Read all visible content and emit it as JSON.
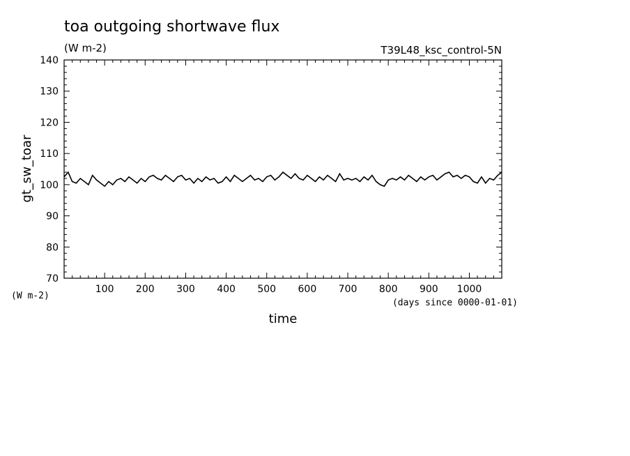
{
  "chart_data": {
    "type": "line",
    "title": "toa outgoing shortwave flux",
    "units": "(W m-2)",
    "experiment": "T39L48_ksc_control-5N",
    "ylabel": "gt_sw_toar",
    "yunits": "(W m-2)",
    "xlabel": "time",
    "xunits": "(days since 0000-01-01)",
    "xlim": [
      0,
      1080
    ],
    "ylim": [
      70,
      140
    ],
    "xticks": [
      100,
      200,
      300,
      400,
      500,
      600,
      700,
      800,
      900,
      1000
    ],
    "yticks": [
      70,
      80,
      90,
      100,
      110,
      120,
      130,
      140
    ],
    "series": [
      {
        "x": [
          0,
          10,
          20,
          30,
          40,
          50,
          60,
          70,
          80,
          90,
          100,
          110,
          120,
          130,
          140,
          150,
          160,
          170,
          180,
          190,
          200,
          210,
          220,
          230,
          240,
          250,
          260,
          270,
          280,
          290,
          300,
          310,
          320,
          330,
          340,
          350,
          360,
          370,
          380,
          390,
          400,
          410,
          420,
          430,
          440,
          450,
          460,
          470,
          480,
          490,
          500,
          510,
          520,
          530,
          540,
          550,
          560,
          570,
          580,
          590,
          600,
          610,
          620,
          630,
          640,
          650,
          660,
          670,
          680,
          690,
          700,
          710,
          720,
          730,
          740,
          750,
          760,
          770,
          780,
          790,
          800,
          810,
          820,
          830,
          840,
          850,
          860,
          870,
          880,
          890,
          900,
          910,
          920,
          930,
          940,
          950,
          960,
          970,
          980,
          990,
          1000,
          1010,
          1020,
          1030,
          1040,
          1050,
          1060,
          1070,
          1080
        ],
        "values": [
          102.5,
          104,
          101,
          100.5,
          102,
          101,
          100,
          103,
          101.5,
          100.5,
          99.5,
          101,
          100,
          101.5,
          102,
          101,
          102.5,
          101.5,
          100.5,
          102,
          101,
          102.5,
          103,
          102,
          101.5,
          103,
          102,
          101,
          102.5,
          103,
          101.5,
          102,
          100.5,
          102,
          101,
          102.5,
          101.5,
          102,
          100.5,
          101,
          102.5,
          101,
          103,
          102,
          101,
          102,
          103,
          101.5,
          102,
          101,
          102.5,
          103,
          101.5,
          102.5,
          104,
          103,
          102,
          103.5,
          102,
          101.5,
          103,
          102,
          101,
          102.5,
          101.5,
          103,
          102,
          101,
          103.5,
          101.5,
          102,
          101.5,
          102,
          101,
          102.5,
          101.5,
          103,
          101,
          100,
          99.5,
          101.5,
          102,
          101.5,
          102.5,
          101.5,
          103,
          102,
          101,
          102.5,
          101.5,
          102.5,
          103,
          101.5,
          102.5,
          103.5,
          104,
          102.5,
          103,
          102,
          103,
          102.5,
          101,
          100.5,
          102.5,
          100.5,
          102,
          101.5,
          103,
          104
        ]
      }
    ]
  }
}
